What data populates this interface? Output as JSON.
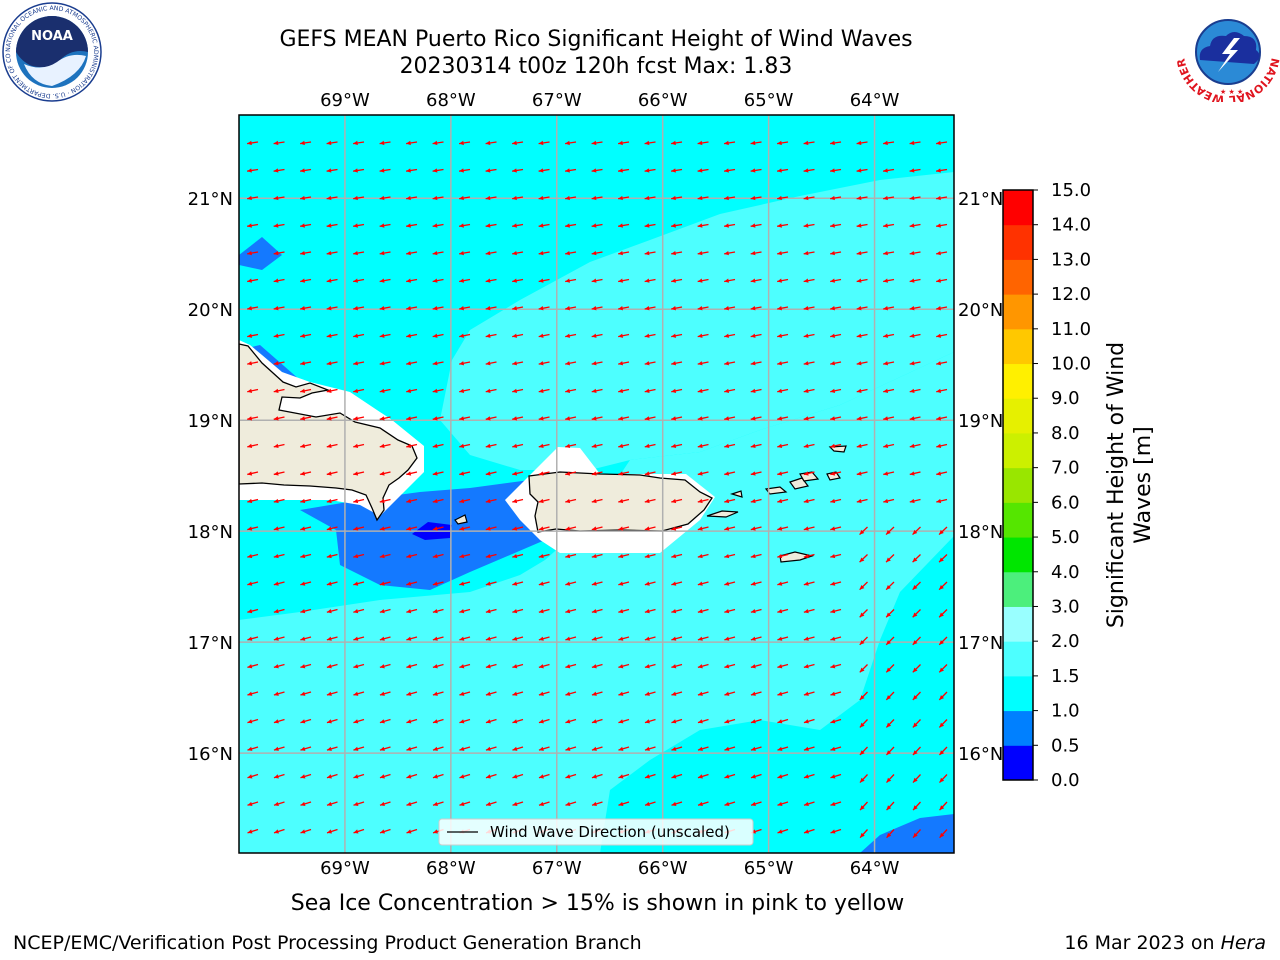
{
  "title": {
    "line1": "GEFS MEAN Puerto Rico Significant Height of Wind Waves",
    "line2": "20230314 t00z 120h fcst   Max: 1.83"
  },
  "logos": {
    "left": {
      "name": "noaa-logo",
      "text": "NOAA",
      "ring_text": "NATIONAL OCEANIC AND ATMOSPHERIC ADMINISTRATION · U.S. DEPARTMENT OF COMMERCE"
    },
    "right": {
      "name": "nws-logo",
      "ring_text": "NATIONAL WEATHER SERVICE"
    }
  },
  "map": {
    "lon_labels": [
      "69°W",
      "68°W",
      "67°W",
      "66°W",
      "65°W",
      "64°W"
    ],
    "lat_labels": [
      "21°N",
      "20°N",
      "19°N",
      "18°N",
      "17°N",
      "16°N"
    ],
    "lon_values": [
      -69,
      -68,
      -67,
      -66,
      -65,
      -64
    ],
    "lat_values": [
      21,
      20,
      19,
      18,
      17,
      16
    ],
    "extent": {
      "lon_min": -70,
      "lon_max": -63.25,
      "lat_min": 15.1,
      "lat_max": 21.75
    },
    "legend_label": "Wind Wave Direction (unscaled)",
    "colors": {
      "land": "#efecdc",
      "coast": "#000000",
      "arrow": "#ff0000",
      "grid": "#b0b0b0"
    }
  },
  "colorbar": {
    "label": "Significant Height of Wind Waves [m]",
    "ticks": [
      "0.0",
      "0.5",
      "1.0",
      "1.5",
      "2.0",
      "3.0",
      "4.0",
      "5.0",
      "6.0",
      "7.0",
      "8.0",
      "9.0",
      "10.0",
      "11.0",
      "12.0",
      "13.0",
      "14.0",
      "15.0"
    ],
    "colors": [
      "#0000ff",
      "#0080ff",
      "#00ffff",
      "#4dffff",
      "#99ffff",
      "#4cef7c",
      "#00e600",
      "#55e600",
      "#99e600",
      "#ccf000",
      "#e6f000",
      "#fff000",
      "#ffc800",
      "#ff9600",
      "#ff6400",
      "#ff3200",
      "#ff0000"
    ]
  },
  "caption": "Sea Ice Concentration > 15% is shown in pink to yellow",
  "footer": {
    "left": "NCEP/EMC/Verification Post Processing Product Generation Branch",
    "date": "16 Mar 2023 on ",
    "host": "Hera"
  }
}
